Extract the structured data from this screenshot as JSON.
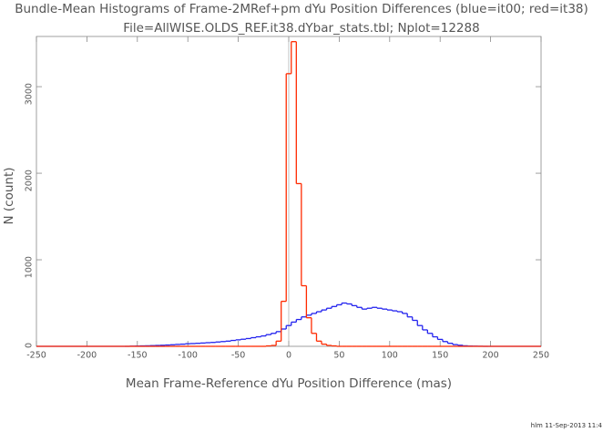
{
  "chart_data": {
    "type": "histogram",
    "title": "Bundle-Mean Histograms of Frame-2MRef+pm dYu Position Differences (blue=it00; red=it38)",
    "subtitle": "File=AllWISE.OLDS_REF.it38.dYbar_stats.tbl; Nplot=12288",
    "x_label": "Mean Frame-Reference dYu Position Difference (mas)",
    "y_label": "N (count)",
    "footer": "hlm 11-Sep-2013 11:4",
    "bins": [
      -162.5,
      -157.5,
      -152.5,
      -147.5,
      -142.5,
      -137.5,
      -132.5,
      -127.5,
      -122.5,
      -117.5,
      -112.5,
      -107.5,
      -102.5,
      -97.5,
      -92.5,
      -87.5,
      -82.5,
      -77.5,
      -72.5,
      -67.5,
      -62.5,
      -57.5,
      -52.5,
      -47.5,
      -42.5,
      -37.5,
      -32.5,
      -27.5,
      -22.5,
      -17.5,
      -12.5,
      -7.5,
      -2.5,
      2.5,
      7.5,
      12.5,
      17.5,
      22.5,
      27.5,
      32.5,
      37.5,
      42.5,
      47.5,
      52.5,
      57.5,
      62.5,
      67.5,
      72.5,
      77.5,
      82.5,
      87.5,
      92.5,
      97.5,
      102.5,
      107.5,
      112.5,
      117.5,
      122.5,
      127.5,
      132.5,
      137.5,
      142.5,
      147.5,
      152.5,
      157.5,
      162.5,
      167.5,
      172.5,
      177.5,
      182.5,
      187.5,
      192.5,
      197.5
    ],
    "series": [
      {
        "color": "#2222ee",
        "values": [
          0,
          2,
          3,
          5,
          6,
          8,
          10,
          12,
          15,
          18,
          22,
          25,
          30,
          32,
          35,
          38,
          42,
          45,
          50,
          55,
          60,
          68,
          75,
          82,
          90,
          100,
          110,
          120,
          135,
          150,
          170,
          200,
          240,
          280,
          310,
          340,
          360,
          380,
          400,
          420,
          440,
          460,
          480,
          500,
          490,
          470,
          450,
          430,
          440,
          450,
          440,
          430,
          420,
          410,
          400,
          380,
          340,
          300,
          240,
          190,
          150,
          110,
          80,
          55,
          35,
          20,
          12,
          6,
          3,
          2,
          1,
          0
        ]
      },
      {
        "color": "#ff2a00",
        "values": [
          0,
          0,
          0,
          0,
          0,
          0,
          0,
          0,
          0,
          0,
          0,
          0,
          0,
          0,
          0,
          0,
          0,
          0,
          0,
          0,
          0,
          0,
          0,
          0,
          0,
          0,
          0,
          0,
          5,
          10,
          60,
          520,
          3150,
          3520,
          1880,
          700,
          330,
          150,
          60,
          25,
          10,
          5,
          0,
          0,
          0,
          0,
          0,
          0,
          0,
          0,
          0,
          0,
          0,
          0,
          0,
          0,
          0,
          0,
          0,
          0,
          0,
          0,
          0,
          0,
          0,
          0,
          0,
          0,
          0,
          0,
          0,
          0
        ]
      }
    ],
    "xlim": [
      -250,
      250
    ],
    "xticks": [
      -250,
      -200,
      -150,
      -100,
      -50,
      0,
      50,
      100,
      150,
      200,
      250
    ],
    "ylim": [
      0,
      3580
    ],
    "yticks": [
      0,
      1000,
      2000,
      3000
    ]
  }
}
